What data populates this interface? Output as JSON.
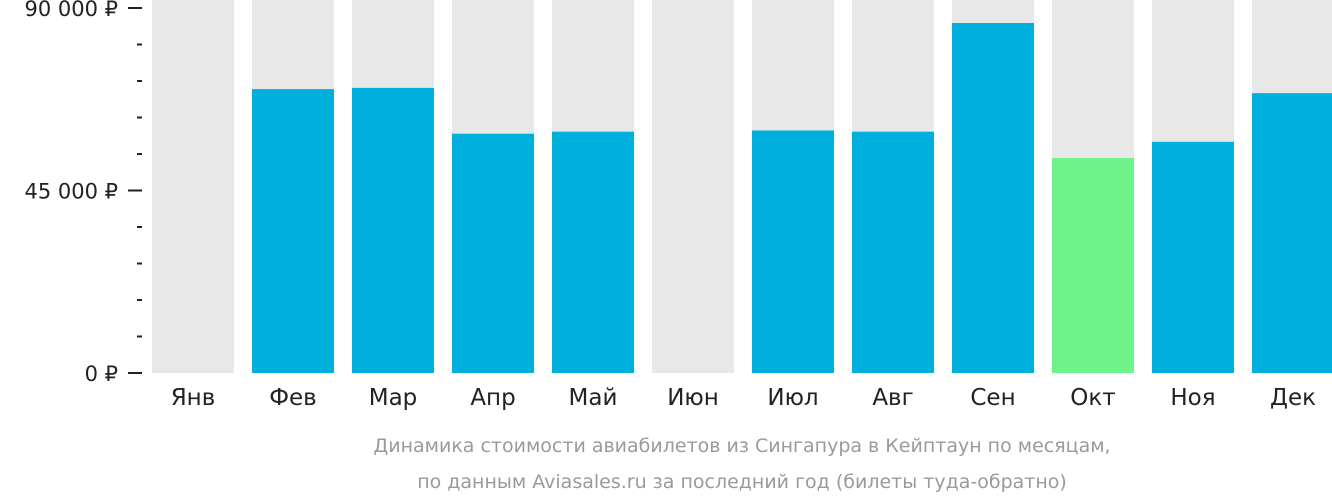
{
  "chart_data": {
    "type": "bar",
    "categories": [
      "Янв",
      "Фев",
      "Мар",
      "Апр",
      "Май",
      "Июн",
      "Июл",
      "Авг",
      "Сен",
      "Окт",
      "Ноя",
      "Дек"
    ],
    "values": [
      null,
      70000,
      70300,
      59000,
      59500,
      null,
      59800,
      59500,
      86300,
      53000,
      57000,
      69000
    ],
    "ylim": [
      0,
      90000
    ],
    "y_tick_labels": [
      "0 ₽",
      "45 000 ₽",
      "90 000 ₽"
    ],
    "y_tick_values": [
      0,
      45000,
      90000
    ],
    "y_minor_step": 9000,
    "highlight_index": 9,
    "caption": [
      "Динамика стоимости авиабилетов из Сингапура в Кейптаун по месяцам,",
      "по данным Aviasales.ru за последний год (билеты туда-обратно)"
    ],
    "grid": false,
    "legend": "none"
  },
  "colors": {
    "bar": "#00b0dc",
    "highlight": "#6df38a",
    "background_column": "#e8e8e8",
    "tick": "#222222",
    "caption": "#9a9a9a"
  }
}
